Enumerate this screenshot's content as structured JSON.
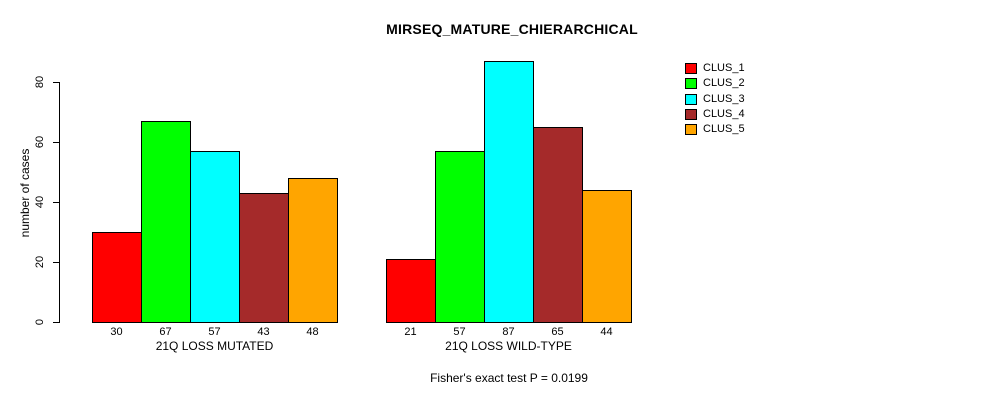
{
  "chart_data": {
    "type": "bar",
    "title": "MIRSEQ_MATURE_CHIERARCHICAL",
    "ylabel": "number of cases",
    "xlabel": "",
    "yticks": [
      0,
      20,
      40,
      60,
      80
    ],
    "ylim": [
      0,
      87
    ],
    "grid": false,
    "legend_position": "right",
    "legend": [
      {
        "label": "CLUS_1",
        "color": "#FF0000"
      },
      {
        "label": "CLUS_2",
        "color": "#00FF00"
      },
      {
        "label": "CLUS_3",
        "color": "#00FFFF"
      },
      {
        "label": "CLUS_4",
        "color": "#A52A2A"
      },
      {
        "label": "CLUS_5",
        "color": "#FFA500"
      }
    ],
    "groups": [
      {
        "label": "21Q LOSS MUTATED",
        "values": [
          30,
          67,
          57,
          43,
          48
        ]
      },
      {
        "label": "21Q LOSS WILD-TYPE",
        "values": [
          21,
          57,
          87,
          65,
          44
        ]
      }
    ],
    "footnote": "Fisher's exact test P = 0.0199"
  }
}
